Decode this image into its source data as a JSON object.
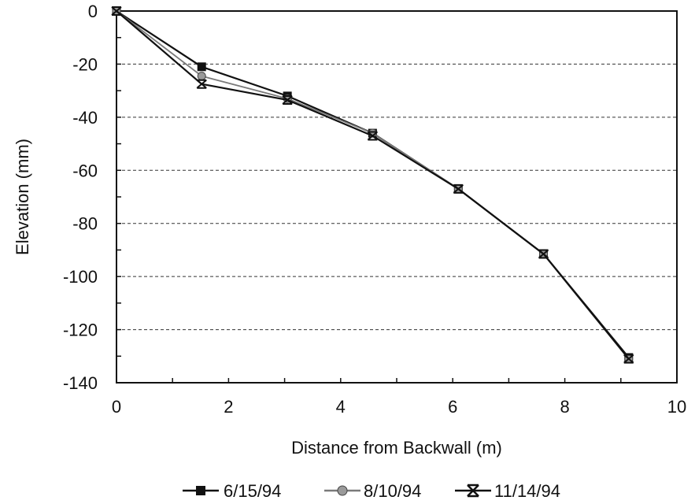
{
  "chart_data": {
    "type": "line",
    "title": "",
    "xlabel": "Distance from Backwall (m)",
    "ylabel": "Elevation (mm)",
    "xlim": [
      0,
      10
    ],
    "ylim": [
      -140,
      0
    ],
    "xticks": [
      "0",
      "2",
      "4",
      "6",
      "8",
      "10"
    ],
    "yticks": [
      "0",
      "-20",
      "-40",
      "-60",
      "-80",
      "-100",
      "-120",
      "-140"
    ],
    "grid": "horizontal dashed",
    "legend_position": "bottom",
    "series": [
      {
        "name": "6/15/94",
        "marker": "square",
        "color": "#111111",
        "x": [
          0,
          1.52,
          3.05,
          4.57,
          6.1,
          7.62,
          9.14
        ],
        "y": [
          0,
          -21,
          -32,
          -46,
          -67,
          -91.5,
          -130.5
        ]
      },
      {
        "name": "8/10/94",
        "marker": "circle",
        "color": "#7a7a7a",
        "x": [
          0,
          1.52,
          3.05,
          4.57,
          6.1,
          7.62,
          9.14
        ],
        "y": [
          0,
          -24.5,
          -33,
          -46,
          -67,
          -91.5,
          -131
        ]
      },
      {
        "name": "11/14/94",
        "marker": "x-bar",
        "color": "#111111",
        "x": [
          0,
          1.52,
          3.05,
          4.57,
          6.1,
          7.62,
          9.14
        ],
        "y": [
          0,
          -27.5,
          -33.5,
          -47,
          -67,
          -91.5,
          -131
        ]
      }
    ]
  }
}
